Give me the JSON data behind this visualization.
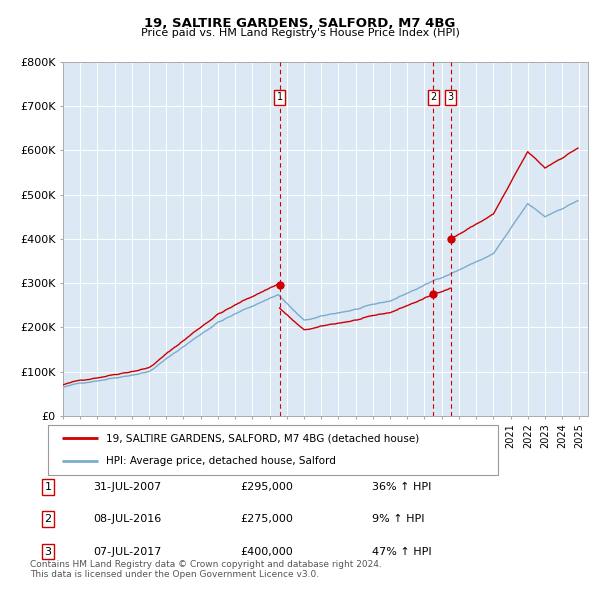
{
  "title": "19, SALTIRE GARDENS, SALFORD, M7 4BG",
  "subtitle": "Price paid vs. HM Land Registry's House Price Index (HPI)",
  "ylim": [
    0,
    800000
  ],
  "yticks": [
    0,
    100000,
    200000,
    300000,
    400000,
    500000,
    600000,
    700000,
    800000
  ],
  "ytick_labels": [
    "£0",
    "£100K",
    "£200K",
    "£300K",
    "£400K",
    "£500K",
    "£600K",
    "£700K",
    "£800K"
  ],
  "xlim_start": 1995.0,
  "xlim_end": 2025.5,
  "red_line_color": "#cc0000",
  "blue_line_color": "#7aaccc",
  "vline_color": "#cc0000",
  "plot_bg_color": "#dce9f5",
  "transactions": [
    {
      "id": 1,
      "year": 2007.58,
      "price": 295000,
      "date": "31-JUL-2007",
      "pct": "36%",
      "dir": "↑"
    },
    {
      "id": 2,
      "year": 2016.52,
      "price": 275000,
      "date": "08-JUL-2016",
      "pct": "9%",
      "dir": "↑"
    },
    {
      "id": 3,
      "year": 2017.52,
      "price": 400000,
      "date": "07-JUL-2017",
      "pct": "47%",
      "dir": "↑"
    }
  ],
  "legend_property": "19, SALTIRE GARDENS, SALFORD, M7 4BG (detached house)",
  "legend_hpi": "HPI: Average price, detached house, Salford",
  "footer": "Contains HM Land Registry data © Crown copyright and database right 2024.\nThis data is licensed under the Open Government Licence v3.0.",
  "background_color": "#ffffff",
  "grid_color": "#ffffff"
}
